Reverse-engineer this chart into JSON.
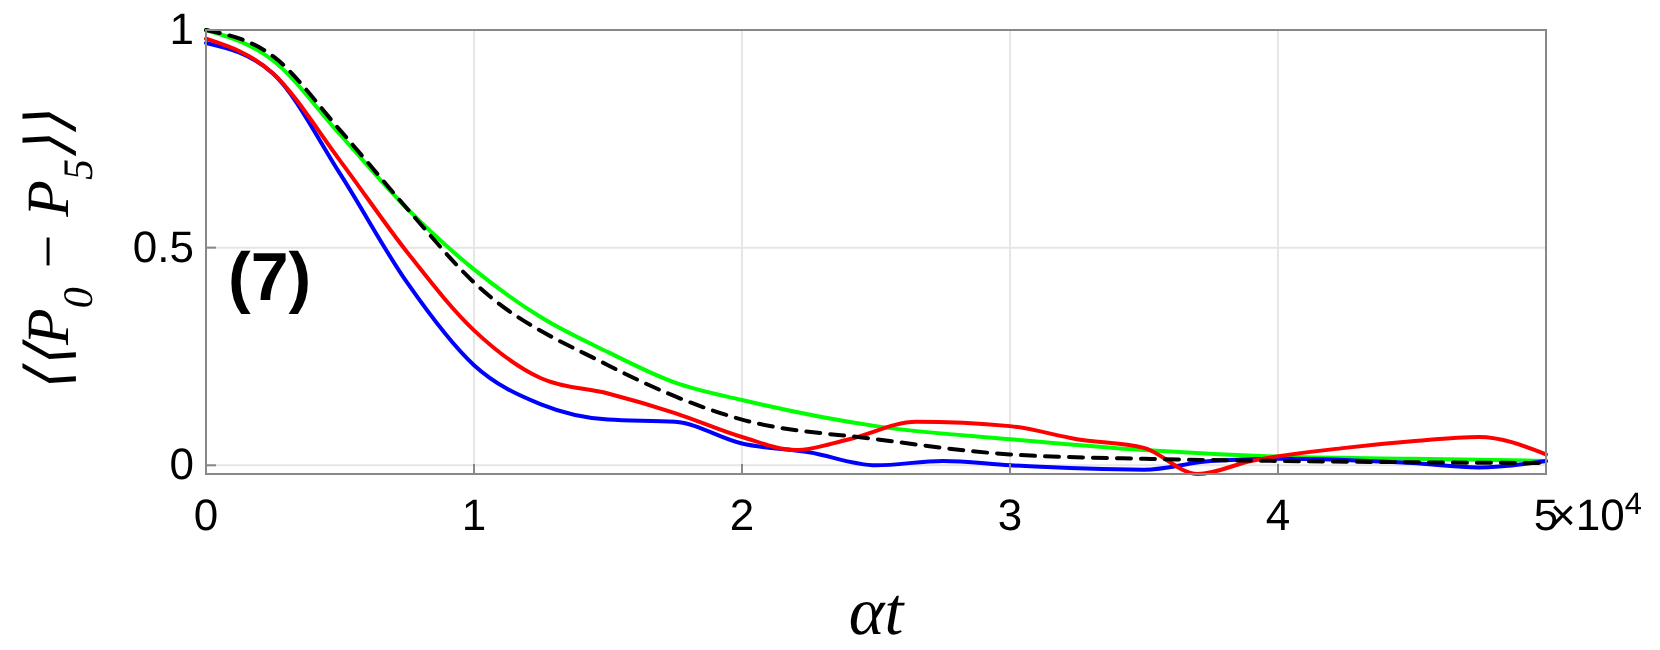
{
  "chart_data": {
    "type": "line",
    "xlabel": "αt",
    "ylabel": "⟨⟨P$_{0}$ − P$_{5}$⟩⟩",
    "annotations": [
      "(7)",
      "×10$^{4}$"
    ],
    "xlim": [
      0,
      5
    ],
    "ylim": [
      -0.02,
      1
    ],
    "xticks": [
      0,
      1,
      2,
      3,
      4,
      5
    ],
    "yticks": [
      0,
      0.5,
      1
    ],
    "grid": true,
    "marker": "none",
    "series": [
      {
        "color": "#00ff00",
        "line_style": "solid",
        "x": [
          0,
          0.25,
          0.5,
          0.75,
          1,
          1.25,
          1.5,
          1.75,
          2,
          2.5,
          3,
          3.5,
          4,
          4.5,
          5
        ],
        "values": [
          1,
          0.93,
          0.76,
          0.59,
          0.45,
          0.34,
          0.26,
          0.19,
          0.15,
          0.09,
          0.06,
          0.035,
          0.02,
          0.015,
          0.01
        ]
      },
      {
        "color": "#0000ff",
        "line_style": "solid",
        "x": [
          0,
          0.25,
          0.5,
          0.75,
          1,
          1.25,
          1.5,
          1.75,
          2,
          2.25,
          2.5,
          2.75,
          3,
          3.5,
          3.75,
          4,
          4.5,
          4.75,
          5
        ],
        "values": [
          0.97,
          0.9,
          0.67,
          0.42,
          0.23,
          0.14,
          0.105,
          0.1,
          0.05,
          0.03,
          0,
          0.01,
          0,
          -0.01,
          0.01,
          0.015,
          0.005,
          -0.005,
          0.01
        ]
      },
      {
        "color": "#ff0000",
        "line_style": "solid",
        "x": [
          0,
          0.25,
          0.5,
          0.75,
          1,
          1.25,
          1.5,
          1.75,
          2,
          2.2,
          2.4,
          2.65,
          3,
          3.25,
          3.5,
          3.7,
          3.9,
          4.25,
          4.5,
          4.75,
          5
        ],
        "values": [
          0.98,
          0.9,
          0.7,
          0.49,
          0.31,
          0.2,
          0.165,
          0.12,
          0.065,
          0.035,
          0.06,
          0.1,
          0.09,
          0.06,
          0.04,
          -0.02,
          0.01,
          0.04,
          0.055,
          0.065,
          0.025
        ]
      },
      {
        "color": "#000000",
        "line_style": "dashed",
        "x": [
          0,
          0.25,
          0.5,
          0.75,
          1,
          1.5,
          2,
          2.5,
          3,
          3.5,
          4,
          4.5,
          5
        ],
        "values": [
          1,
          0.94,
          0.77,
          0.59,
          0.42,
          0.23,
          0.105,
          0.06,
          0.025,
          0.015,
          0.01,
          0.007,
          0.005
        ]
      }
    ]
  }
}
